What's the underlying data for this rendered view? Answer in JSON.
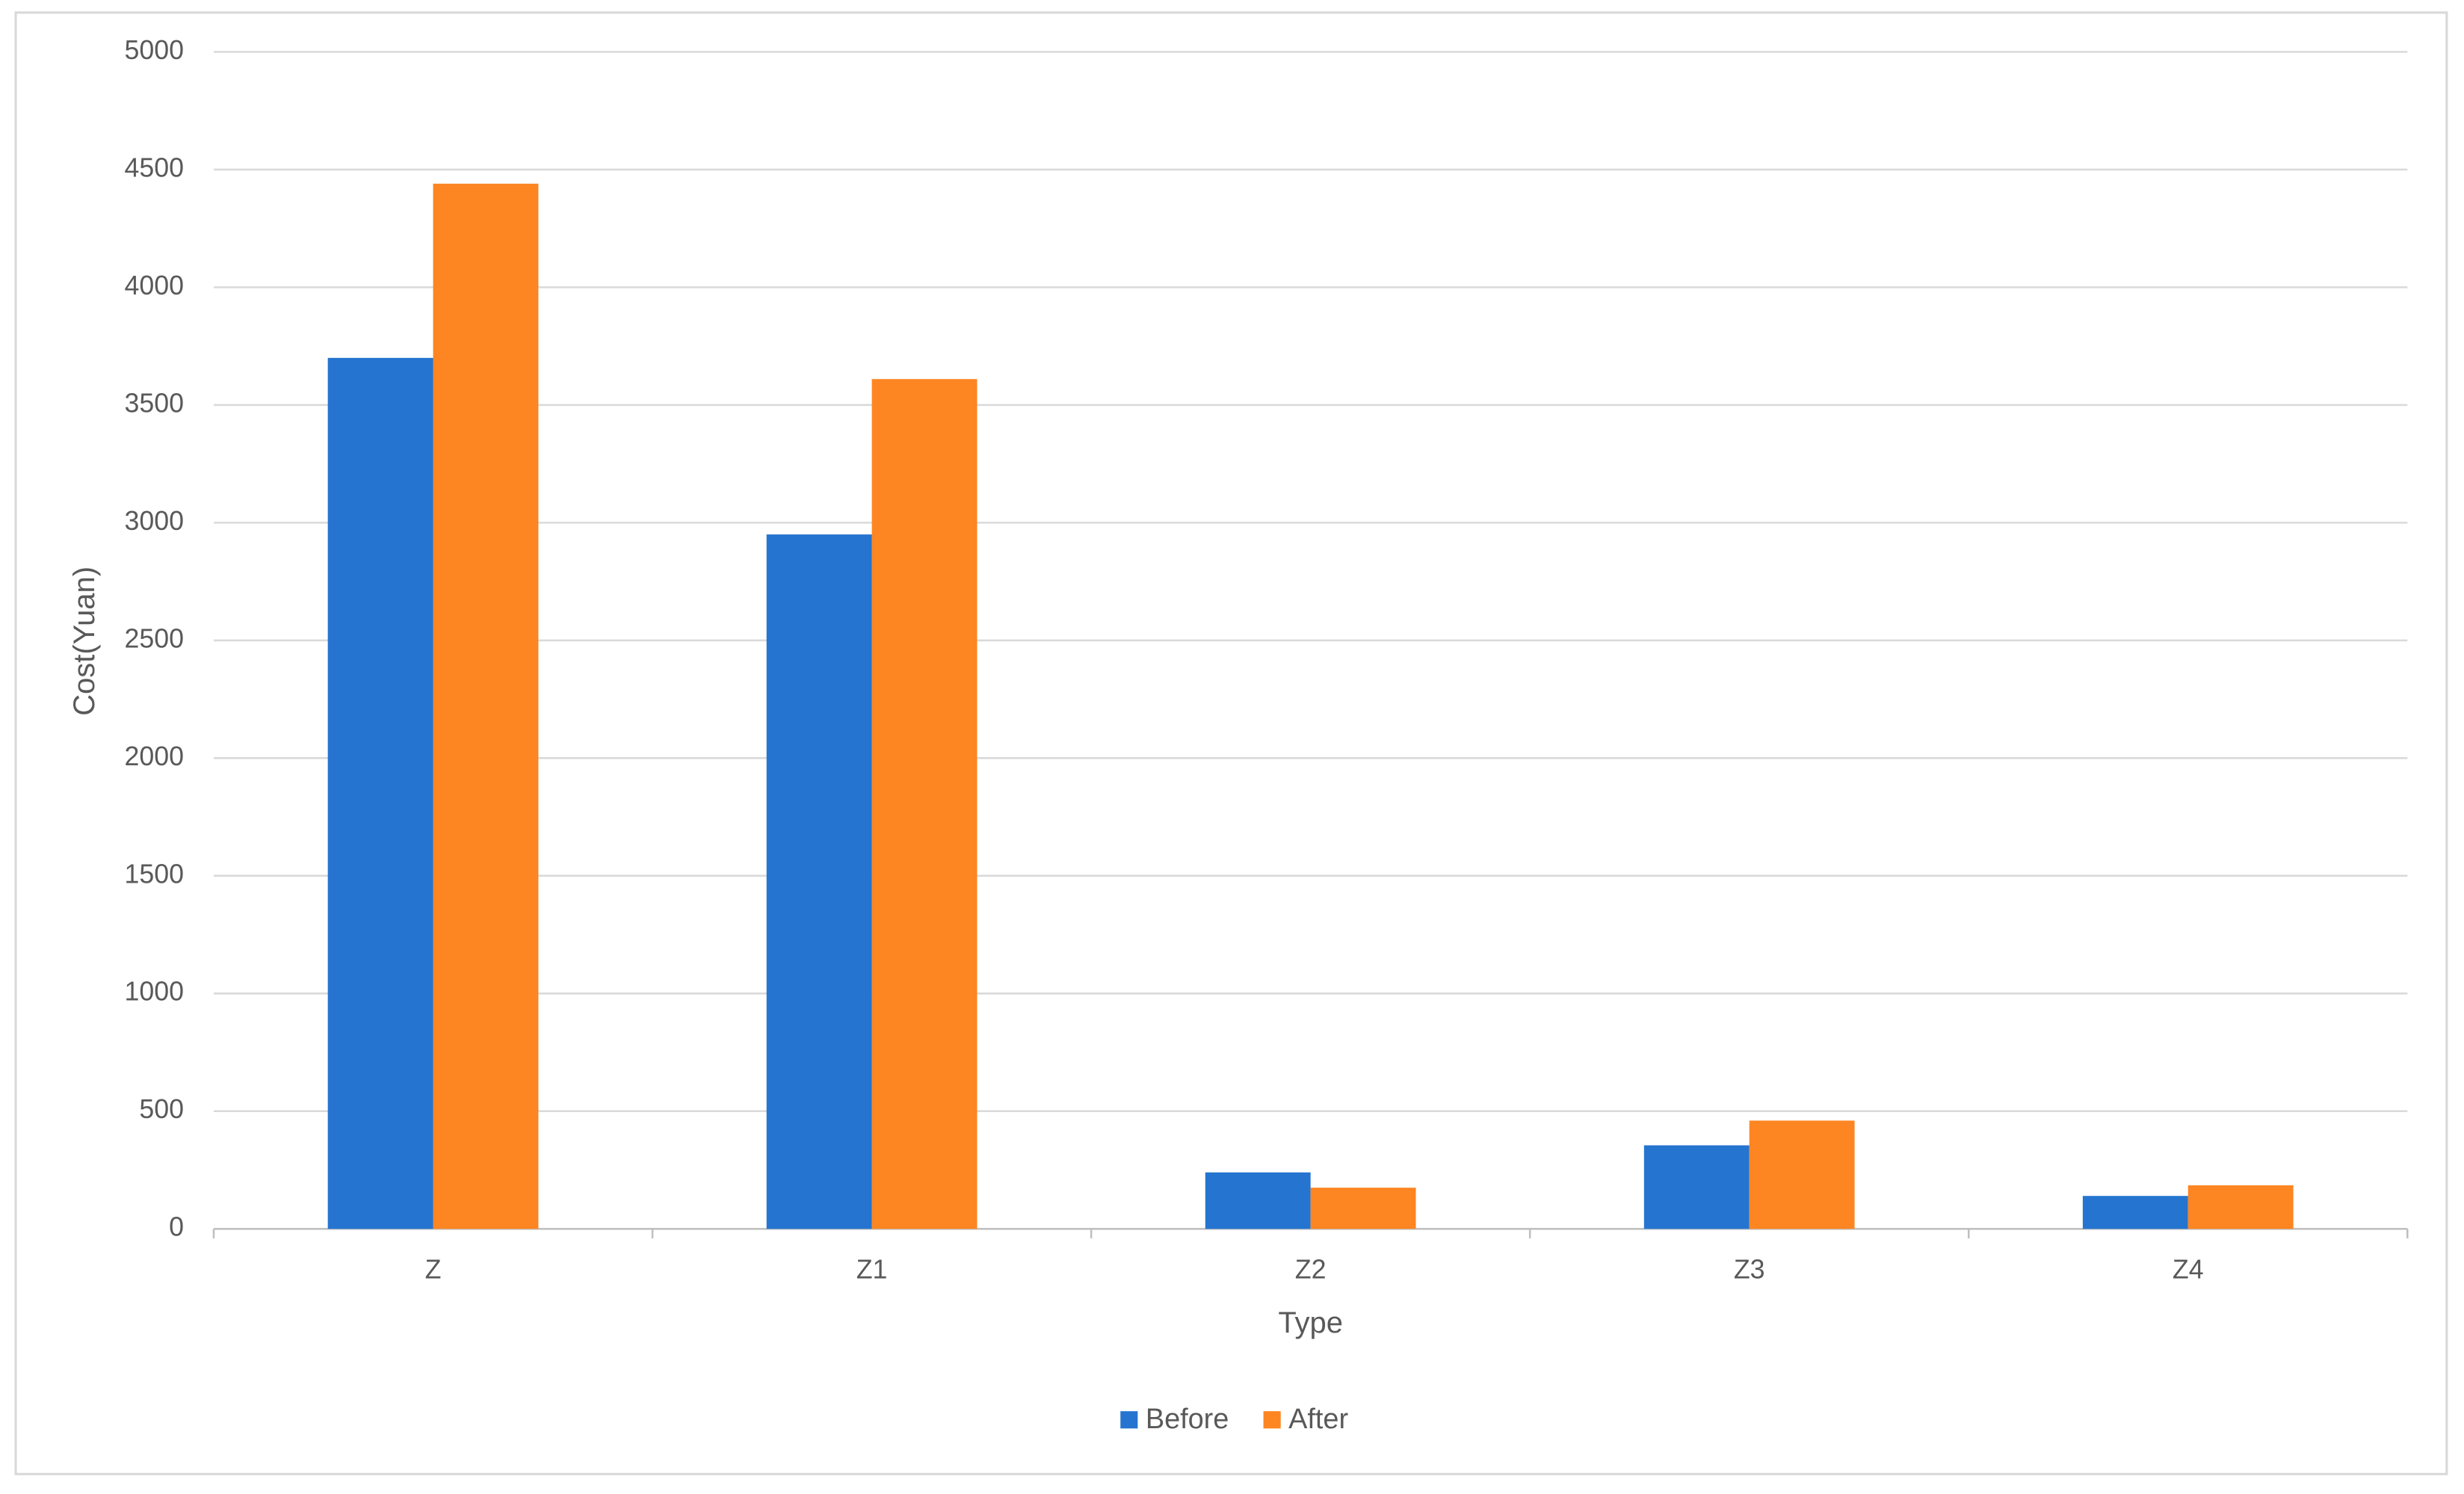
{
  "chart_data": {
    "type": "bar",
    "x_label": "Type",
    "y_label": "Cost(Yuan)",
    "categories": [
      "Z",
      "Z1",
      "Z2",
      "Z3",
      "Z4"
    ],
    "series": [
      {
        "name": "Before",
        "color": "#2574d0",
        "values": [
          3700,
          2950,
          240,
          355,
          140
        ]
      },
      {
        "name": "After",
        "color": "#fd8522",
        "values": [
          4440,
          3610,
          175,
          460,
          185
        ]
      }
    ],
    "ylim": [
      0,
      5000
    ],
    "yticks": [
      0,
      500,
      1000,
      1500,
      2000,
      2500,
      3000,
      3500,
      4000,
      4500,
      5000
    ],
    "grid": true,
    "legend": "bottom"
  }
}
